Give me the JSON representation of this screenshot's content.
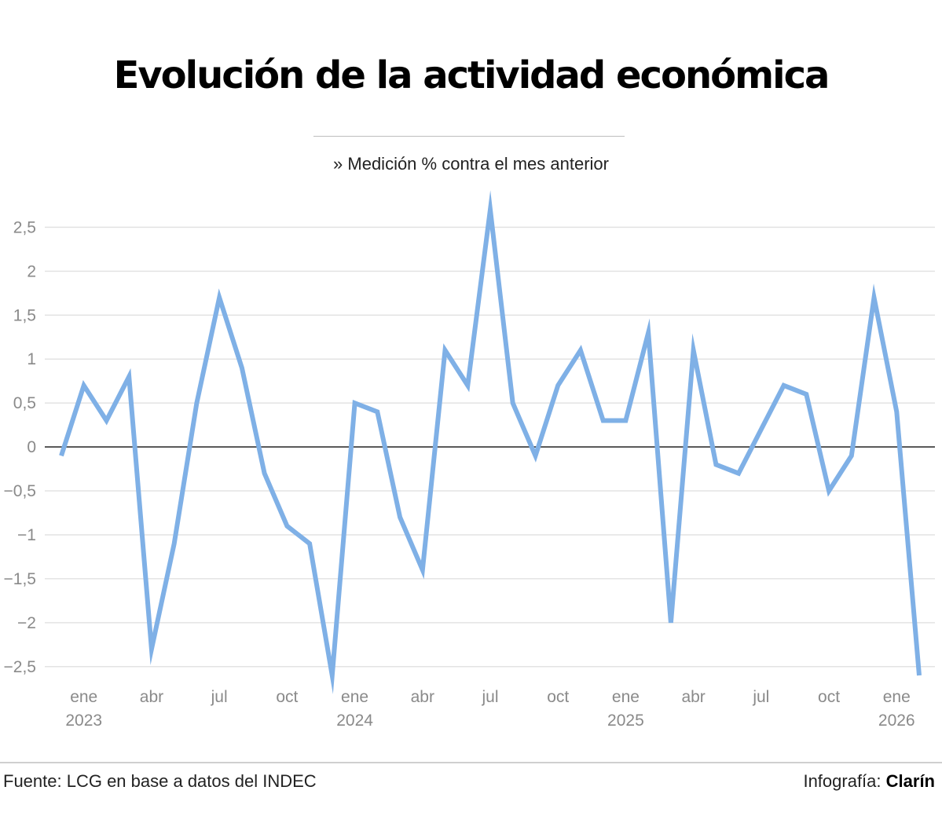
{
  "title": "Evolución de la actividad económica",
  "subtitle": "» Medición % contra el mes anterior",
  "footer": {
    "source": "Fuente: LCG en base a datos del INDEC",
    "credit_prefix": "Infografía: ",
    "credit_brand": "Clarín"
  },
  "colors": {
    "series": "#7fb0e6",
    "zero_line": "#333333",
    "grid": "#e3e3e3",
    "ticks": "#8a8a8a"
  },
  "chart_data": {
    "type": "line",
    "title": "Evolución de la actividad económica",
    "subtitle": "» Medición % contra el mes anterior",
    "xlabel": "",
    "ylabel": "",
    "ylim": [
      -2.6,
      2.7
    ],
    "grid": true,
    "legend": "none",
    "y_ticks": [
      {
        "value": 2.5,
        "label": "2,5"
      },
      {
        "value": 2,
        "label": "2"
      },
      {
        "value": 1.5,
        "label": "1,5"
      },
      {
        "value": 1,
        "label": "1"
      },
      {
        "value": 0.5,
        "label": "0,5"
      },
      {
        "value": 0,
        "label": "0"
      },
      {
        "value": -0.5,
        "label": "−0,5"
      },
      {
        "value": -1,
        "label": "−1"
      },
      {
        "value": -1.5,
        "label": "−1,5"
      },
      {
        "value": -2,
        "label": "−2"
      },
      {
        "value": -2.5,
        "label": "−2,5"
      }
    ],
    "x_ticks": [
      {
        "date": "2023-01",
        "label": "ene",
        "year": "2023"
      },
      {
        "date": "2023-04",
        "label": "abr",
        "year": ""
      },
      {
        "date": "2023-07",
        "label": "jul",
        "year": ""
      },
      {
        "date": "2023-10",
        "label": "oct",
        "year": ""
      },
      {
        "date": "2024-01",
        "label": "ene",
        "year": "2024"
      },
      {
        "date": "2024-04",
        "label": "abr",
        "year": ""
      },
      {
        "date": "2024-07",
        "label": "jul",
        "year": ""
      },
      {
        "date": "2024-10",
        "label": "oct",
        "year": ""
      },
      {
        "date": "2025-01",
        "label": "ene",
        "year": "2025"
      },
      {
        "date": "2025-04",
        "label": "abr",
        "year": ""
      },
      {
        "date": "2025-07",
        "label": "jul",
        "year": ""
      },
      {
        "date": "2025-10",
        "label": "oct",
        "year": ""
      },
      {
        "date": "2026-01",
        "label": "ene",
        "year": "2026"
      }
    ],
    "x": [
      "2022-12",
      "2023-01",
      "2023-02",
      "2023-03",
      "2023-04",
      "2023-05",
      "2023-06",
      "2023-07",
      "2023-08",
      "2023-09",
      "2023-10",
      "2023-11",
      "2023-12",
      "2024-01",
      "2024-02",
      "2024-03",
      "2024-04",
      "2024-05",
      "2024-06",
      "2024-07",
      "2024-08",
      "2024-09",
      "2024-10",
      "2024-11",
      "2024-12",
      "2025-01",
      "2025-02",
      "2025-03",
      "2025-04",
      "2025-05",
      "2025-06",
      "2025-07",
      "2025-08",
      "2025-09",
      "2025-10",
      "2025-11",
      "2025-12",
      "2026-01",
      "2026-02"
    ],
    "series": [
      {
        "name": "",
        "values": [
          -0.1,
          0.7,
          0.3,
          0.8,
          -2.3,
          -1.1,
          0.5,
          1.7,
          0.9,
          -0.3,
          -0.9,
          -1.1,
          -2.6,
          0.5,
          0.4,
          -0.8,
          -1.4,
          1.1,
          0.7,
          2.7,
          0.5,
          -0.1,
          0.7,
          1.1,
          0.3,
          0.3,
          1.3,
          -2.0,
          1.1,
          -0.2,
          -0.3,
          0.2,
          0.7,
          0.6,
          -0.5,
          -0.1,
          1.7,
          0.4,
          -2.6
        ]
      }
    ]
  }
}
